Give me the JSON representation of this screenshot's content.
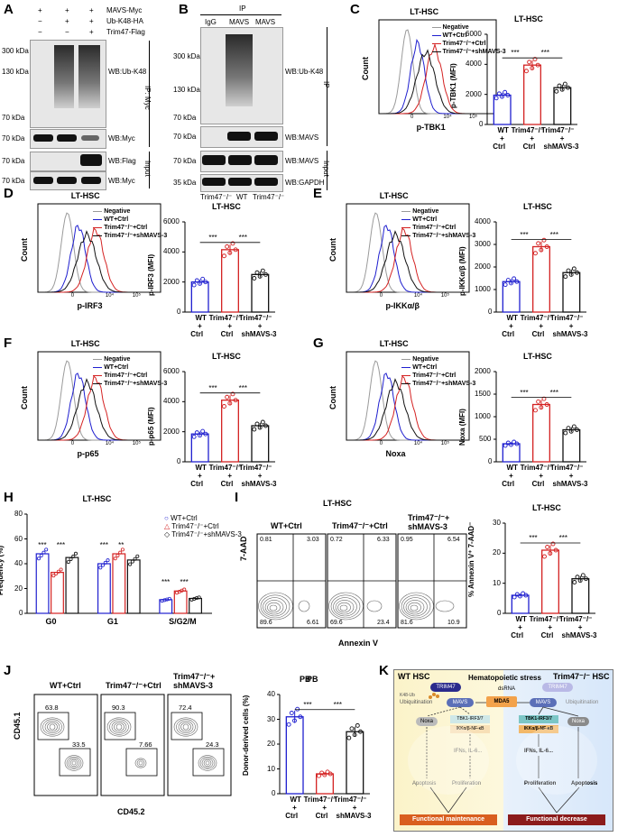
{
  "panel_letters": [
    "A",
    "B",
    "C",
    "D",
    "E",
    "F",
    "G",
    "H",
    "I",
    "J",
    "K"
  ],
  "panelA": {
    "plus_minus_rows": [
      {
        "label": "MAVS-Myc",
        "marks": [
          "+",
          "+",
          "+"
        ]
      },
      {
        "label": "Ub-K48-HA",
        "marks": [
          "−",
          "+",
          "+"
        ]
      },
      {
        "label": "Trim47-Flag",
        "marks": [
          "−",
          "−",
          "+"
        ]
      }
    ],
    "ip_label": "IP: Myc",
    "input_label": "Input",
    "wb": [
      "WB:Ub-K48",
      "WB:Myc",
      "WB:Flag",
      "WB:Myc"
    ],
    "kda": [
      "300 kDa",
      "130 kDa",
      "70 kDa",
      "70 kDa",
      "70 kDa",
      "70 kDa"
    ]
  },
  "panelB": {
    "ip_header": "IP",
    "lanes": [
      "IgG",
      "MAVS",
      "MAVS"
    ],
    "ip_label": "IP",
    "input_label": "Input",
    "wb": [
      "WB:Ub-K48",
      "WB:MAVS",
      "WB:MAVS",
      "WB:GAPDH"
    ],
    "kda": [
      "300 kDa",
      "130 kDa",
      "70 kDa",
      "70 kDa",
      "70 kDa",
      "35 kDa"
    ],
    "genotypes": [
      "Trim47⁻/⁻",
      "WT",
      "Trim47⁻/⁻"
    ]
  },
  "flow_title": "LT-HSC",
  "flow_legend": [
    "Negative",
    "WT+Ctrl",
    "Trim47⁻/⁻+Ctrl",
    "Trim47⁻/⁻+shMAVS-3"
  ],
  "flow_ylabel": "Count",
  "flow_ticks": [
    "0",
    "10⁴",
    "10⁵"
  ],
  "flow_xlabels": {
    "C": "p-TBK1",
    "D": "p-IRF3",
    "E": "p-IKKα/β",
    "F": "p-p65",
    "G": "Noxa"
  },
  "bar_groups": [
    "WT\n+\nCtrl",
    "Trim47⁻/⁻\n+\nCtrl",
    "Trim47⁻/⁻\n+\nshMAVS-3"
  ],
  "bar_group_lines": [
    [
      "WT",
      "+",
      "Ctrl"
    ],
    [
      "Trim47⁻/⁻",
      "+",
      "Ctrl"
    ],
    [
      "Trim47⁻/⁻",
      "+",
      "shMAVS-3"
    ]
  ],
  "sig": "***",
  "sig2": "**",
  "colors": {
    "wt": "#1f1fcf",
    "ko": "#d42222",
    "sh": "#111111",
    "neg": "#9a9a9a"
  },
  "chart_data": [
    {
      "id": "C",
      "type": "bar",
      "title": "LT-HSC",
      "ylabel": "p-TBK1 (MFI)",
      "ylim": [
        0,
        6000
      ],
      "yticks": [
        0,
        2000,
        4000,
        6000
      ],
      "categories": [
        "WT+Ctrl",
        "Trim47-/-+Ctrl",
        "Trim47-/-+shMAVS-3"
      ],
      "values": [
        1950,
        3950,
        2450
      ]
    },
    {
      "id": "D",
      "type": "bar",
      "title": "LT-HSC",
      "ylabel": "p-IRF3 (MFI)",
      "ylim": [
        0,
        6000
      ],
      "yticks": [
        0,
        2000,
        4000,
        6000
      ],
      "categories": [
        "WT+Ctrl",
        "Trim47-/-+Ctrl",
        "Trim47-/-+shMAVS-3"
      ],
      "values": [
        2000,
        4150,
        2500
      ]
    },
    {
      "id": "E",
      "type": "bar",
      "title": "LT-HSC",
      "ylabel": "p-IKKα/β (MFI)",
      "ylim": [
        0,
        4000
      ],
      "yticks": [
        0,
        1000,
        2000,
        3000,
        4000
      ],
      "categories": [
        "WT+Ctrl",
        "Trim47-/-+Ctrl",
        "Trim47-/-+shMAVS-3"
      ],
      "values": [
        1350,
        2900,
        1750
      ]
    },
    {
      "id": "F",
      "type": "bar",
      "title": "LT-HSC",
      "ylabel": "p-p65 (MFI)",
      "ylim": [
        0,
        6000
      ],
      "yticks": [
        0,
        2000,
        4000,
        6000
      ],
      "categories": [
        "WT+Ctrl",
        "Trim47-/-+Ctrl",
        "Trim47-/-+shMAVS-3"
      ],
      "values": [
        1850,
        4100,
        2400
      ]
    },
    {
      "id": "G",
      "type": "bar",
      "title": "LT-HSC",
      "ylabel": "Noxa (MFI)",
      "ylim": [
        0,
        2000
      ],
      "yticks": [
        0,
        500,
        1000,
        1500,
        2000
      ],
      "categories": [
        "WT+Ctrl",
        "Trim47-/-+Ctrl",
        "Trim47-/-+shMAVS-3"
      ],
      "values": [
        400,
        1270,
        710
      ]
    },
    {
      "id": "H",
      "type": "bar",
      "title": "LT-HSC",
      "ylabel": "Frequency (%)",
      "ylim": [
        0,
        80
      ],
      "yticks": [
        0,
        20,
        40,
        60,
        80
      ],
      "categories": [
        "G0",
        "G1",
        "S/G2/M"
      ],
      "series": [
        {
          "name": "WT+Ctrl",
          "values": [
            48,
            40,
            11
          ]
        },
        {
          "name": "Trim47⁻/⁻+Ctrl",
          "values": [
            33,
            48,
            18
          ]
        },
        {
          "name": "Trim47⁻/⁻+shMAVS-3",
          "values": [
            45,
            43,
            12
          ]
        }
      ]
    },
    {
      "id": "I",
      "type": "bar",
      "title": "LT-HSC",
      "ylabel": "% Annexin V⁺ 7-AAD⁻",
      "ylim": [
        0,
        30
      ],
      "yticks": [
        0,
        10,
        20,
        30
      ],
      "categories": [
        "WT+Ctrl",
        "Trim47-/-+Ctrl",
        "Trim47-/-+shMAVS-3"
      ],
      "values": [
        6,
        21,
        11.5
      ]
    },
    {
      "id": "J",
      "type": "bar",
      "title": "PB",
      "ylabel": "Donor-derived cells (%)",
      "ylim": [
        0,
        40
      ],
      "yticks": [
        0,
        10,
        20,
        30,
        40
      ],
      "categories": [
        "WT+Ctrl",
        "Trim47-/-+Ctrl",
        "Trim47-/-+shMAVS-3"
      ],
      "values": [
        31,
        8,
        25
      ]
    }
  ],
  "panelI": {
    "title": "LT-HSC",
    "plots": [
      {
        "name": "WT+Ctrl",
        "q": [
          "0.81",
          "3.03",
          "89.6",
          "6.61"
        ]
      },
      {
        "name": "Trim47⁻/⁻+Ctrl",
        "q": [
          "0.72",
          "6.33",
          "69.6",
          "23.4"
        ]
      },
      {
        "name": "Trim47⁻/⁻+\nshMAVS-3",
        "q": [
          "0.95",
          "6.54",
          "81.6",
          "10.9"
        ]
      }
    ],
    "plot_names": [
      "WT+Ctrl",
      "Trim47⁻/⁻+Ctrl",
      "Trim47⁻/⁻+",
      "shMAVS-3"
    ],
    "ylabel": "7-AAD",
    "xlabel": "Annexin V"
  },
  "panelJ": {
    "title": "PB",
    "plot_names": [
      "WT+Ctrl",
      "Trim47⁻/⁻+Ctrl",
      "Trim47⁻/⁻+",
      "shMAVS-3"
    ],
    "gates": [
      [
        "63.8",
        "33.5"
      ],
      [
        "90.3",
        "7.66"
      ],
      [
        "72.4",
        "24.3"
      ]
    ],
    "ylabel": "CD45.1",
    "xlabel": "CD45.2"
  },
  "h_legend": [
    "WT+Ctrl",
    "Trim47⁻/⁻+Ctrl",
    "Trim47⁻/⁻+shMAVS-3"
  ],
  "panelK": {
    "wt_header": "WT HSC",
    "ko_header": "Trim47⁻/⁻ HSC",
    "stress": "Hematopoietic stress",
    "dsrna": "dsRNA",
    "mda5": "MDA5",
    "trim47": "TRIM47",
    "mavs": "MAVS",
    "ub": "Ubiquitination",
    "noxa": "Noxa",
    "tbk": "TBK1-IRF3/7",
    "ikk": "IKKα/β-NF-κB",
    "ifn": "IFNs, IL-6...",
    "apoptosis": "Apoptosis",
    "proliferation": "Proliferation",
    "maint": "Functional maintenance",
    "decrease": "Functional decrease",
    "k48": "K48-Ub"
  }
}
